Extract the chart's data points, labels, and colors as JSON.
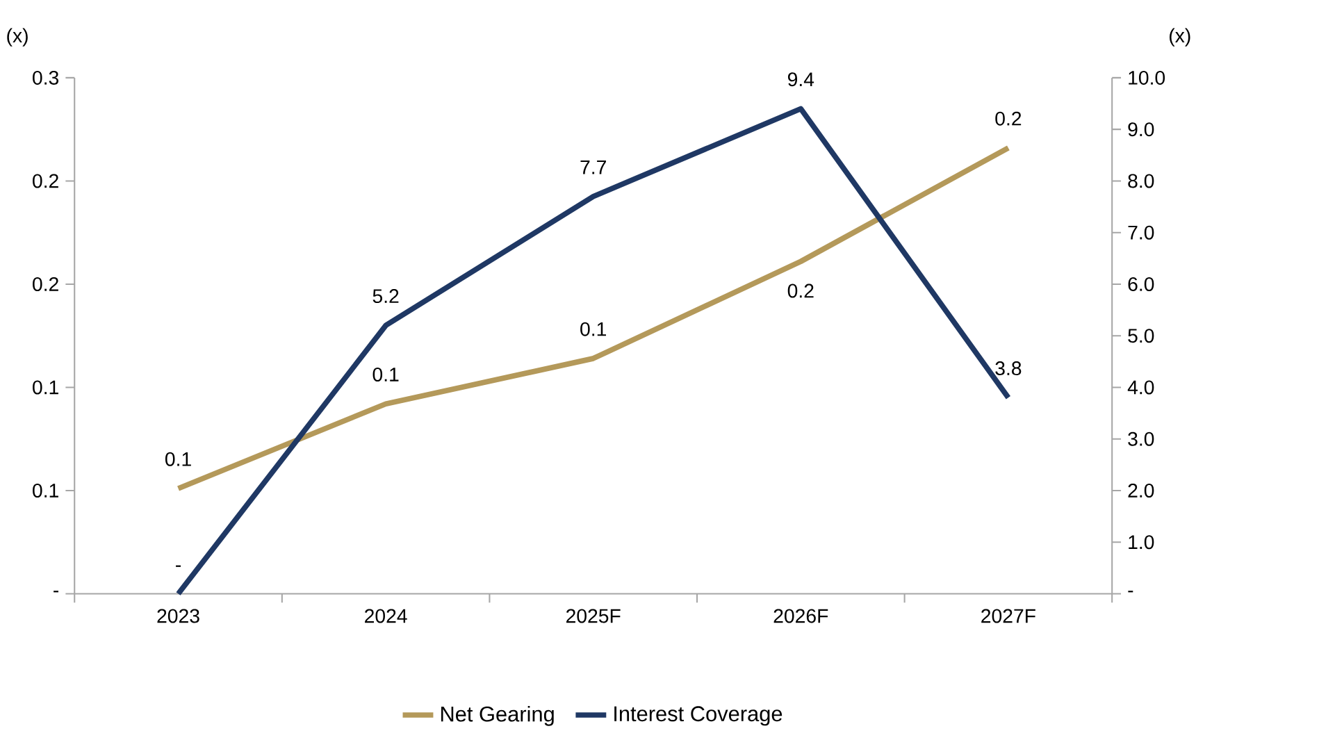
{
  "chart_data": {
    "type": "line",
    "categories": [
      "2023",
      "2024",
      "2025F",
      "2026F",
      "2027F"
    ],
    "series": [
      {
        "name": "Net Gearing",
        "color": "#b4995a",
        "values": [
          0.051,
          0.092,
          0.114,
          0.161,
          0.216
        ],
        "value_labels": [
          "0.1",
          "0.1",
          "0.1",
          "0.2",
          "0.2"
        ]
      },
      {
        "name": "Interest Coverage",
        "color": "#1f3864",
        "axis": "y2",
        "values": [
          0,
          5.2,
          7.7,
          9.4,
          3.8
        ],
        "value_labels": [
          "-",
          "5.2",
          "7.7",
          "9.4",
          "3.8"
        ]
      }
    ],
    "ylabel": "(x)",
    "y2label": "(x)",
    "ylim": [
      0,
      0.25
    ],
    "yticks": [
      {
        "value": 0,
        "label": "-"
      },
      {
        "value": 0.05,
        "label": "0.1"
      },
      {
        "value": 0.1,
        "label": "0.1"
      },
      {
        "value": 0.15,
        "label": "0.2"
      },
      {
        "value": 0.2,
        "label": "0.2"
      },
      {
        "value": 0.25,
        "label": "0.3"
      }
    ],
    "y2lim": [
      0,
      10
    ],
    "y2ticks": [
      {
        "value": 0,
        "label": "-"
      },
      {
        "value": 1,
        "label": "1.0"
      },
      {
        "value": 2,
        "label": "2.0"
      },
      {
        "value": 3,
        "label": "3.0"
      },
      {
        "value": 4,
        "label": "4.0"
      },
      {
        "value": 5,
        "label": "5.0"
      },
      {
        "value": 6,
        "label": "6.0"
      },
      {
        "value": 7,
        "label": "7.0"
      },
      {
        "value": 8,
        "label": "8.0"
      },
      {
        "value": 9,
        "label": "9.0"
      },
      {
        "value": 10,
        "label": "10.0"
      }
    ],
    "legend": "bottom"
  }
}
